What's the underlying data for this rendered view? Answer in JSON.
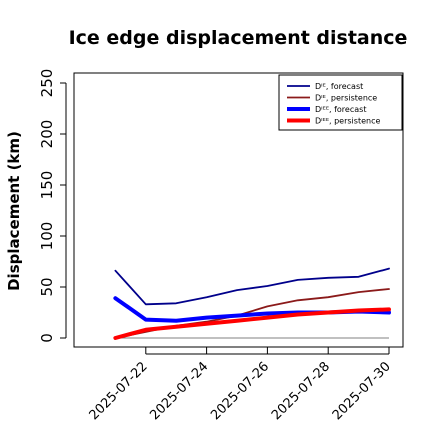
{
  "chart_data": {
    "type": "line",
    "title": "Ice edge displacement distance",
    "ylabel": "Displacement (km)",
    "xlabel": "",
    "ylim": [
      0,
      260
    ],
    "yticks": [
      0,
      50,
      100,
      150,
      200,
      250
    ],
    "x": [
      "2025-07-21",
      "2025-07-22",
      "2025-07-23",
      "2025-07-24",
      "2025-07-25",
      "2025-07-26",
      "2025-07-27",
      "2025-07-28",
      "2025-07-29",
      "2025-07-30"
    ],
    "xlim": [
      "2025-07-20",
      "2025-07-30"
    ],
    "xtick_labels": [
      "2025-07-22",
      "2025-07-24",
      "2025-07-26",
      "2025-07-28",
      "2025-07-30"
    ],
    "highlight_tick": "2025-07-22",
    "highlight_color": "#228B22",
    "reference_line": 0,
    "legend_position": "top-right",
    "series": [
      {
        "name": "Dᴵᴱ, forecast",
        "color": "#00008B",
        "width": 1.8,
        "values": [
          66,
          33,
          34,
          40,
          47,
          51,
          57,
          59,
          60,
          68
        ]
      },
      {
        "name": "Dᴵᴱ, persistence",
        "color": "#8B1A1A",
        "width": 1.8,
        "values": [
          0,
          6,
          12,
          16,
          22,
          31,
          37,
          40,
          45,
          48
        ]
      },
      {
        "name": "Dᴵᴱᴱ, forecast",
        "color": "#0000FF",
        "width": 4,
        "values": [
          39,
          18,
          17,
          20,
          22,
          24,
          25,
          25,
          26,
          25
        ]
      },
      {
        "name": "Dᴵᴱᴱ, persistence",
        "color": "#FF0000",
        "width": 4,
        "values": [
          0,
          8,
          11,
          14,
          17,
          20,
          23,
          25,
          27,
          28
        ]
      }
    ]
  }
}
